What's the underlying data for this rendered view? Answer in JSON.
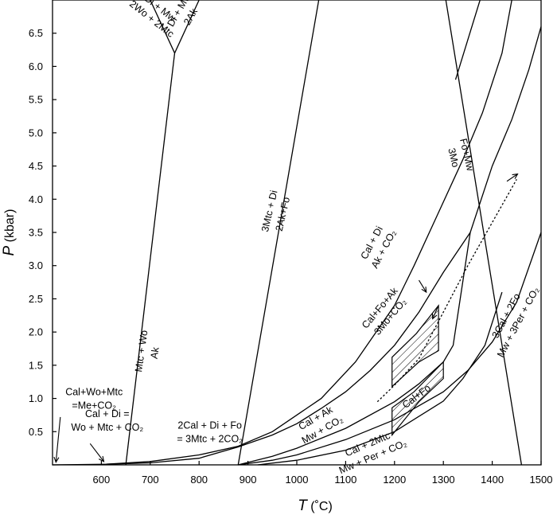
{
  "chart_data": {
    "type": "line",
    "xlabel_var": "T",
    "xlabel_unit": " (˚C)",
    "ylabel_var": "P",
    "ylabel_unit": " (kbar)",
    "xlim": [
      500,
      1500
    ],
    "ylim": [
      0,
      7.0
    ],
    "x_ticks": [
      "600",
      "700",
      "800",
      "900",
      "1000",
      "1100",
      "1200",
      "1300",
      "1400",
      "1500"
    ],
    "y_ticks": [
      "0.5",
      "1.0",
      "1.5",
      "2.0",
      "2.5",
      "3.0",
      "3.5",
      "4.0",
      "4.5",
      "5.0",
      "5.5",
      "6.0",
      "6.5"
    ],
    "series": [
      {
        "points": [
          [
            650,
            0
          ],
          [
            750,
            6.2
          ]
        ]
      },
      {
        "points": [
          [
            750,
            6.2
          ],
          [
            700,
            7.0
          ]
        ]
      },
      {
        "points": [
          [
            750,
            6.2
          ],
          [
            800,
            7.0
          ]
        ]
      },
      {
        "points": [
          [
            880,
            0
          ],
          [
            1045,
            7.0
          ]
        ]
      },
      {
        "points": [
          [
            1305,
            7.0
          ],
          [
            1460,
            0
          ]
        ]
      },
      {
        "points": [
          [
            1375,
            7.0
          ],
          [
            1325,
            5.8
          ]
        ]
      },
      {
        "points": [
          [
            500,
            0
          ],
          [
            610,
            0.01
          ],
          [
            700,
            0.05
          ],
          [
            800,
            0.15
          ],
          [
            880,
            0.28
          ],
          [
            950,
            0.5
          ],
          [
            1050,
            1.0
          ],
          [
            1120,
            1.55
          ],
          [
            1200,
            2.4
          ],
          [
            1240,
            3.0
          ],
          [
            1290,
            3.8
          ],
          [
            1340,
            4.6
          ],
          [
            1380,
            5.3
          ],
          [
            1420,
            6.2
          ],
          [
            1440,
            7.0
          ]
        ]
      },
      {
        "points": [
          [
            610,
            0.01
          ],
          [
            700,
            0.03
          ],
          [
            800,
            0.1
          ],
          [
            880,
            0.27
          ],
          [
            950,
            0.45
          ],
          [
            1000,
            0.62
          ],
          [
            1050,
            0.85
          ],
          [
            1100,
            1.1
          ],
          [
            1150,
            1.42
          ],
          [
            1200,
            1.8
          ],
          [
            1250,
            2.3
          ],
          [
            1300,
            2.9
          ],
          [
            1355,
            3.5
          ]
        ]
      },
      {
        "points": [
          [
            880,
            0
          ],
          [
            950,
            0.13
          ],
          [
            1000,
            0.25
          ],
          [
            1100,
            0.55
          ],
          [
            1200,
            0.95
          ],
          [
            1250,
            1.22
          ],
          [
            1300,
            1.55
          ],
          [
            1320,
            1.8
          ],
          [
            1355,
            3.5
          ],
          [
            1400,
            4.5
          ],
          [
            1440,
            5.2
          ],
          [
            1475,
            5.95
          ],
          [
            1500,
            6.6
          ]
        ]
      },
      {
        "points": [
          [
            880,
            0
          ],
          [
            950,
            0.07
          ],
          [
            1000,
            0.15
          ],
          [
            1100,
            0.38
          ],
          [
            1200,
            0.68
          ],
          [
            1300,
            1.1
          ],
          [
            1350,
            1.42
          ],
          [
            1400,
            1.85
          ],
          [
            1450,
            2.45
          ],
          [
            1500,
            3.5
          ]
        ]
      },
      {
        "points": [
          [
            920,
            0
          ],
          [
            1000,
            0.07
          ],
          [
            1100,
            0.22
          ],
          [
            1200,
            0.5
          ],
          [
            1300,
            0.96
          ],
          [
            1340,
            1.3
          ],
          [
            1385,
            1.8
          ],
          [
            1420,
            2.6
          ]
        ]
      },
      {
        "points": [
          [
            1165,
            0.95
          ],
          [
            1200,
            1.2
          ],
          [
            1250,
            1.6
          ],
          [
            1300,
            2.3
          ],
          [
            1350,
            3.0
          ],
          [
            1400,
            3.65
          ],
          [
            1450,
            4.3
          ]
        ]
      }
    ],
    "hatched_regions": [
      [
        [
          1195,
          1.18
        ],
        [
          1195,
          1.62
        ],
        [
          1245,
          1.98
        ],
        [
          1290,
          2.4
        ],
        [
          1290,
          1.72
        ],
        [
          1250,
          1.55
        ]
      ],
      [
        [
          1195,
          0.45
        ],
        [
          1195,
          0.86
        ],
        [
          1240,
          1.1
        ],
        [
          1300,
          1.55
        ],
        [
          1300,
          1.3
        ],
        [
          1250,
          0.95
        ]
      ]
    ],
    "annotations": [
      {
        "id": "mtc-wo",
        "lines": [
          "Mtc + Wo",
          "Ak"
        ],
        "x": 695,
        "y": 1.7,
        "rotate": -82
      },
      {
        "id": "di-mw-wo",
        "lines": [
          "Di + Mw",
          "2Wo + 2Mtc"
        ],
        "x": 712,
        "y": 6.8,
        "rotate": 38
      },
      {
        "id": "di-mw-ak",
        "lines": [
          "Di + Mw",
          "2Ak"
        ],
        "x": 770,
        "y": 6.8,
        "rotate": -60
      },
      {
        "id": "3mtc-di",
        "lines": [
          "3Mtc + Di",
          "2Ak+Fo"
        ],
        "x": 957,
        "y": 3.8,
        "rotate": -77
      },
      {
        "id": "cal-di",
        "lines": [
          "Cal + Di",
          "Ak + CO₂"
        ],
        "x": 1165,
        "y": 3.3,
        "rotate": -62
      },
      {
        "id": "fo-mw",
        "lines": [
          "Fo+Mw",
          "3Mo"
        ],
        "x": 1335,
        "y": 4.65,
        "rotate": 77
      },
      {
        "id": "cal-fo-ak",
        "lines": [
          "Cal+Fo+Ak",
          "3Mo+CO₂"
        ],
        "x": 1180,
        "y": 2.3,
        "rotate": -50
      },
      {
        "id": "3cal-2fo",
        "lines": [
          "3Cal + 2Fo",
          "Mw + 3Per + CO₂"
        ],
        "x": 1440,
        "y": 2.2,
        "rotate": -62
      },
      {
        "id": "cal-fo",
        "lines": [
          "Cal+Fo"
        ],
        "x": 1245,
        "y": 1.03,
        "rotate": -37
      },
      {
        "id": "cal-ak",
        "lines": [
          "Cal + Ak",
          "Mw + CO₂"
        ],
        "x": 1045,
        "y": 0.62,
        "rotate": -30
      },
      {
        "id": "cal-2mtc",
        "lines": [
          "Cal + 2Mtc",
          "Mw + Per + CO₂"
        ],
        "x": 1150,
        "y": 0.22,
        "rotate": -23
      },
      {
        "id": "2cal-di-fo",
        "lines": [
          "2Cal + Di + Fo",
          "= 3Mtc + 2CO₂"
        ],
        "x": 822,
        "y": 0.5,
        "rotate": 0
      },
      {
        "id": "cal-di-wo",
        "lines": [
          "Cal + Di =",
          "Wo + Mtc + CO₂"
        ],
        "x": 612,
        "y": 0.67,
        "rotate": 0
      },
      {
        "id": "cal-wo-mtc",
        "lines": [
          "Cal+Wo+Mtc",
          "=Me+CO₂"
        ],
        "x": 585,
        "y": 1.0,
        "rotate": 0
      }
    ],
    "arrows": [
      {
        "from": [
          516,
          0.72
        ],
        "to": [
          507,
          0.04
        ]
      },
      {
        "from": [
          577,
          0.32
        ],
        "to": [
          605,
          0.05
        ]
      },
      {
        "from": [
          1430,
          4.27
        ],
        "to": [
          1452,
          4.38
        ]
      },
      {
        "from": [
          1250,
          2.78
        ],
        "to": [
          1265,
          2.6
        ]
      },
      {
        "from": [
          1290,
          2.4
        ],
        "to": [
          1278,
          2.2
        ]
      }
    ]
  }
}
